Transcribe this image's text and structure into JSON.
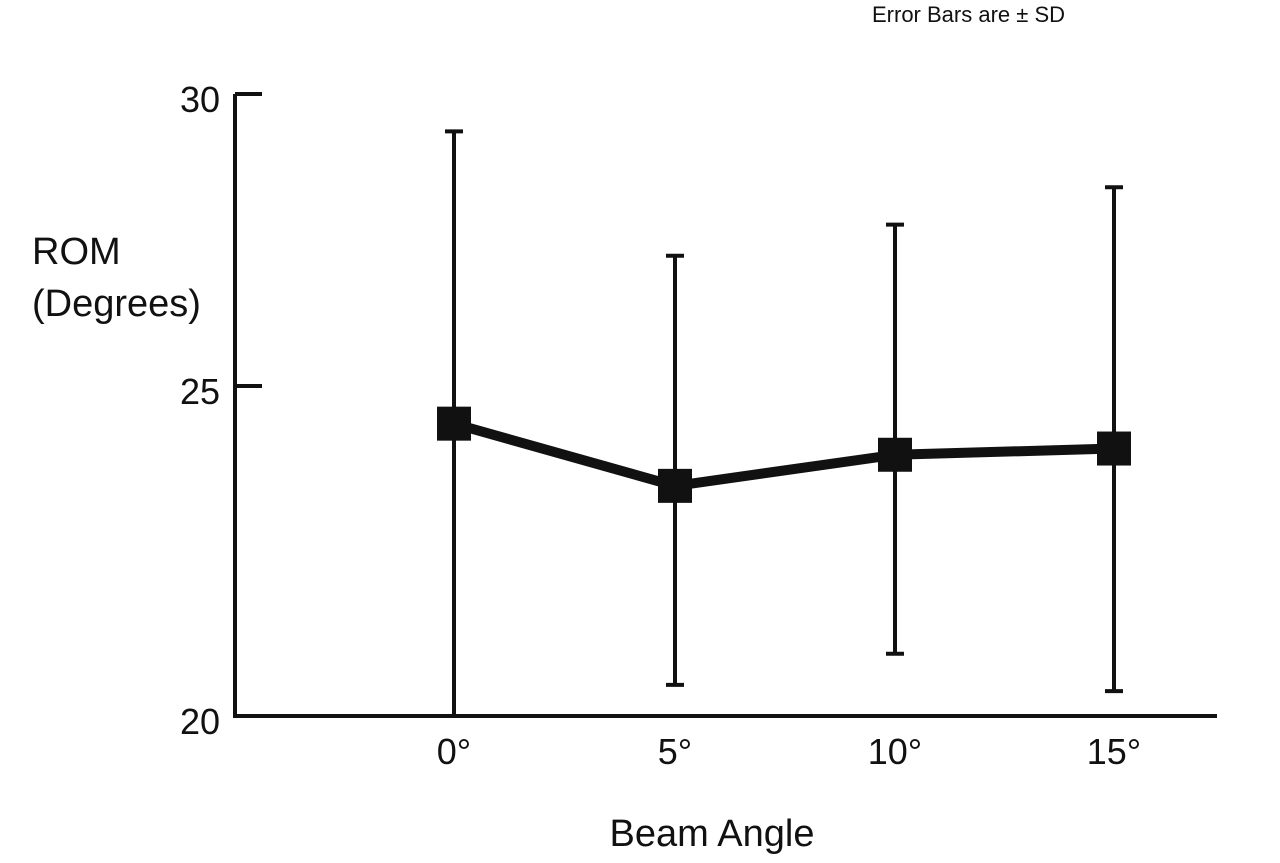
{
  "chart_data": {
    "type": "line",
    "note": "Error Bars are ± SD",
    "categories": [
      "0°",
      "5°",
      "10°",
      "15°"
    ],
    "series": [
      {
        "values": [
          24.7,
          23.7,
          24.2,
          24.3
        ],
        "error_low": [
          20.0,
          20.5,
          21.0,
          20.4
        ],
        "error_high": [
          29.4,
          27.4,
          27.9,
          28.5
        ]
      }
    ],
    "ylabel_lines": [
      "ROM",
      "(Degrees)"
    ],
    "xlabel": "Beam Angle",
    "yticks": [
      "20",
      "25",
      "30"
    ],
    "ylim": [
      20,
      30
    ],
    "grid": false,
    "colors": {
      "line": "#111111",
      "marker": "#111111"
    }
  }
}
